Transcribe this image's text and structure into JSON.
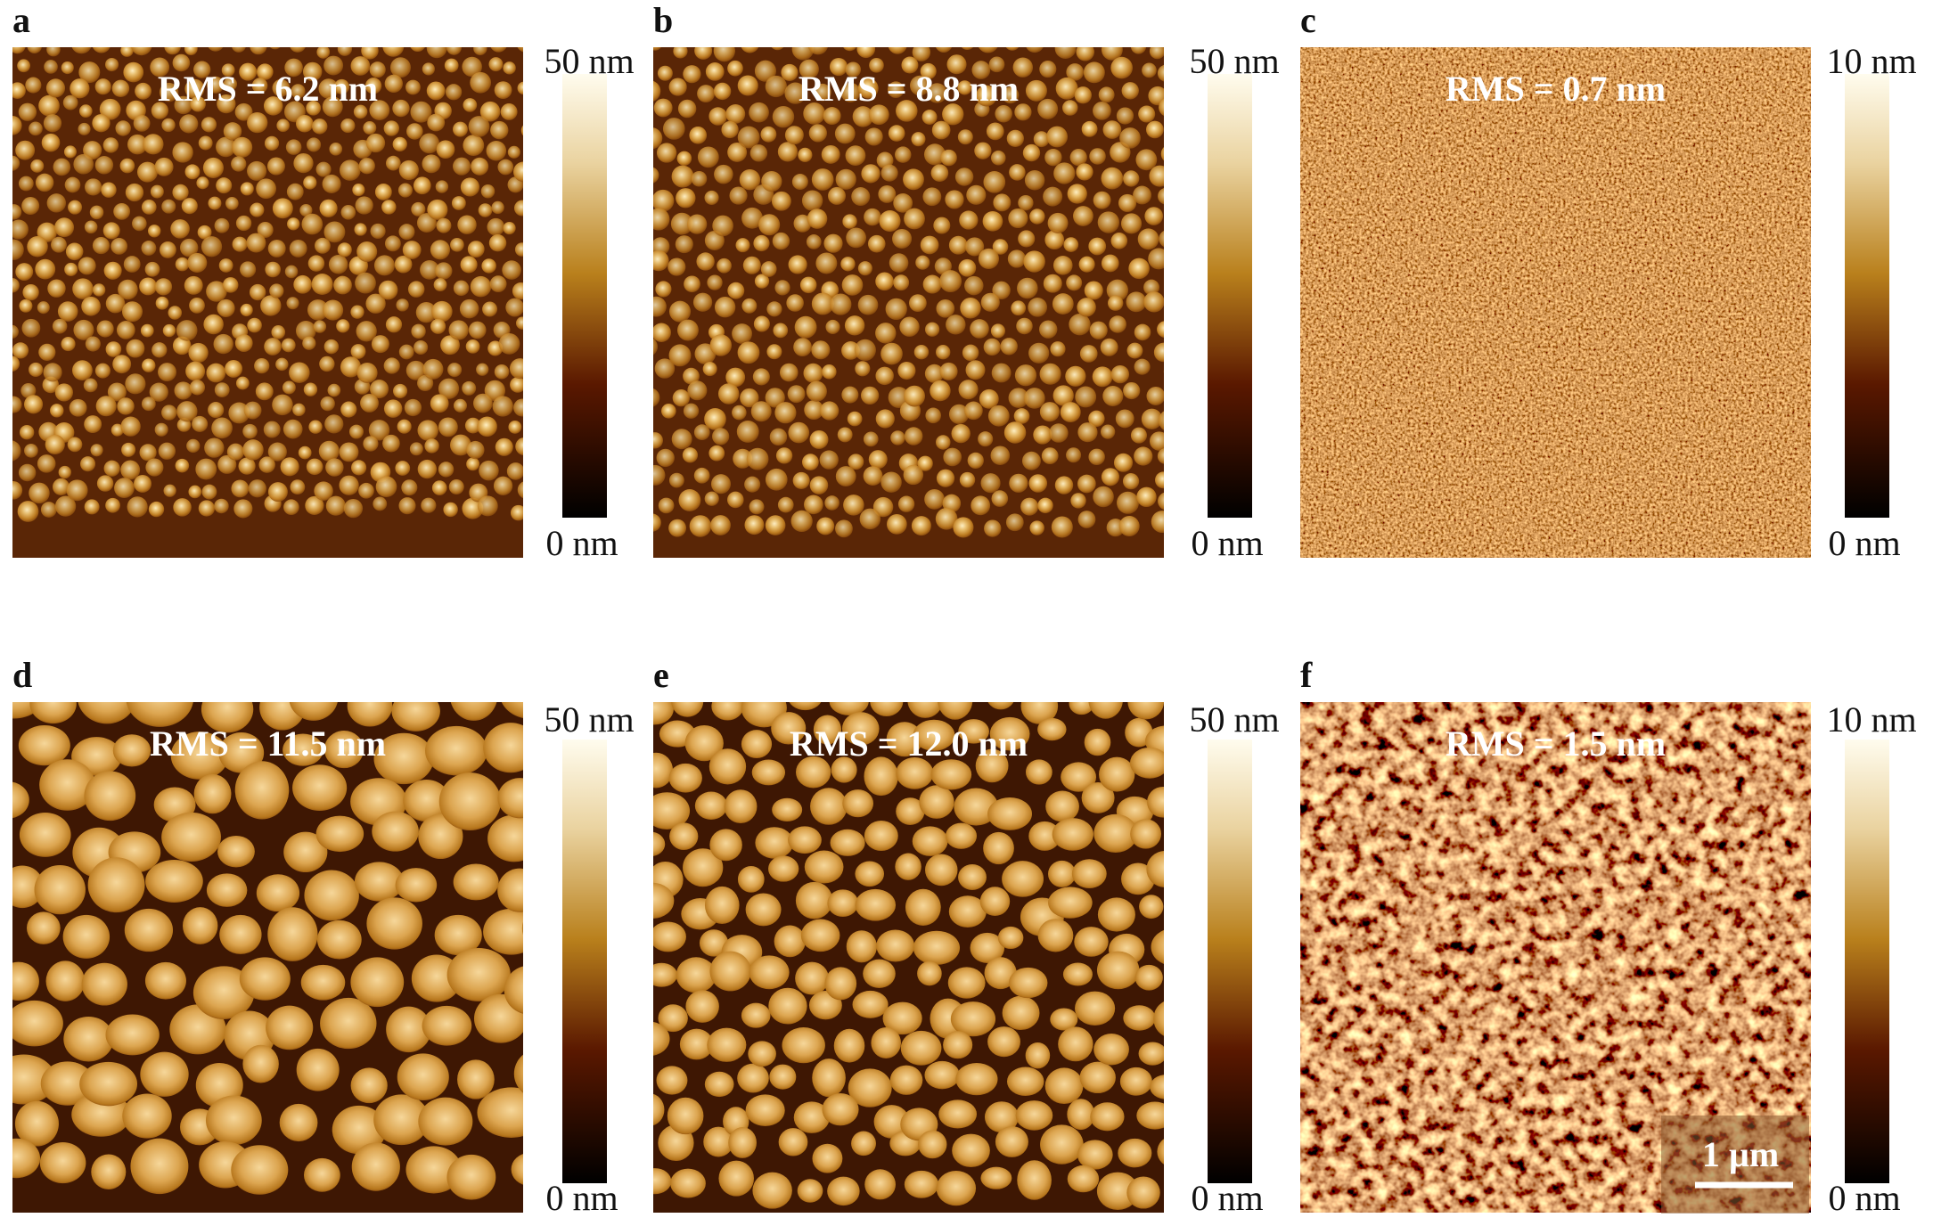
{
  "panels": [
    {
      "label": "a",
      "rms": "RMS = 6.2 nm",
      "colorbar": {
        "max": "50 nm",
        "min": "0 nm"
      }
    },
    {
      "label": "b",
      "rms": "RMS = 8.8 nm",
      "colorbar": {
        "max": "50 nm",
        "min": "0 nm"
      }
    },
    {
      "label": "c",
      "rms": "RMS = 0.7 nm",
      "colorbar": {
        "max": "10 nm",
        "min": "0 nm"
      }
    },
    {
      "label": "d",
      "rms": "RMS = 11.5 nm",
      "colorbar": {
        "max": "50 nm",
        "min": "0 nm"
      }
    },
    {
      "label": "e",
      "rms": "RMS = 12.0 nm",
      "colorbar": {
        "max": "50 nm",
        "min": "0 nm"
      }
    },
    {
      "label": "f",
      "rms": "RMS = 1.5 nm",
      "colorbar": {
        "max": "10 nm",
        "min": "0 nm"
      }
    }
  ],
  "scale_bar": "1 µm"
}
